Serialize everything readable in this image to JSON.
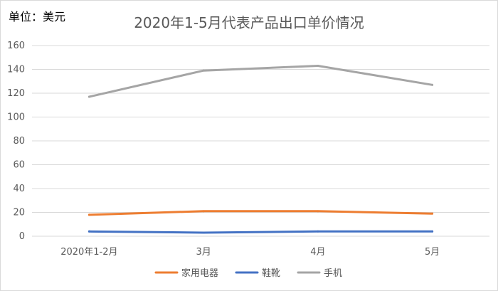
{
  "unit_label": "单位：美元",
  "chart_data": {
    "type": "line",
    "title": "2020年1-5月代表产品出口单价情况",
    "xlabel": "",
    "ylabel": "",
    "categories": [
      "2020年1-2月",
      "3月",
      "4月",
      "5月"
    ],
    "ylim": [
      0,
      160
    ],
    "yticks": [
      0,
      20,
      40,
      60,
      80,
      100,
      120,
      140,
      160
    ],
    "grid": true,
    "legend_position": "bottom",
    "series": [
      {
        "name": "家用电器",
        "values": [
          18,
          21,
          21,
          19
        ],
        "color": "#ed7d31"
      },
      {
        "name": "鞋靴",
        "values": [
          4,
          3,
          4,
          4
        ],
        "color": "#4472c4"
      },
      {
        "name": "手机",
        "values": [
          117,
          139,
          143,
          127
        ],
        "color": "#a5a5a5"
      }
    ]
  }
}
